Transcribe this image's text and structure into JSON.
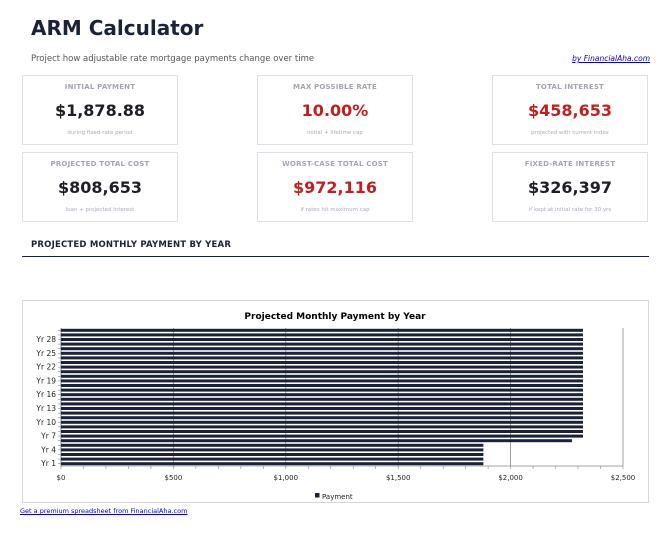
{
  "header": {
    "title": "ARM Calculator",
    "subtitle": "Project how adjustable rate mortgage payments change over time",
    "byline": "by FinancialAha.com"
  },
  "cards": [
    {
      "label": "INITIAL PAYMENT",
      "value": "$1,878.88",
      "note": "during fixed-rate period",
      "color": "#1e1e28"
    },
    {
      "label": "MAX POSSIBLE RATE",
      "value": "10.00%",
      "note": "initial + lifetime cap",
      "color": "#c0201e"
    },
    {
      "label": "TOTAL INTEREST",
      "value": "$458,653",
      "note": "projected with current index",
      "color": "#c0201e"
    },
    {
      "label": "PROJECTED TOTAL COST",
      "value": "$808,653",
      "note": "loan + projected interest",
      "color": "#1e1e28"
    },
    {
      "label": "WORST-CASE TOTAL COST",
      "value": "$972,116",
      "note": "if rates hit maximum cap",
      "color": "#c0201e"
    },
    {
      "label": "FIXED-RATE INTEREST",
      "value": "$326,397",
      "note": "if kept at initial rate for 30 yrs",
      "color": "#1e1e28"
    }
  ],
  "section": {
    "title": "PROJECTED MONTHLY PAYMENT BY YEAR"
  },
  "footer": {
    "link": "Get a premium spreadsheet from FinancialAha.com"
  },
  "chart_data": {
    "type": "bar",
    "orientation": "horizontal",
    "title": "Projected Monthly Payment by Year",
    "categories": [
      "Yr 1",
      "Yr 2",
      "Yr 3",
      "Yr 4",
      "Yr 5",
      "Yr 6",
      "Yr 7",
      "Yr 8",
      "Yr 9",
      "Yr 10",
      "Yr 11",
      "Yr 12",
      "Yr 13",
      "Yr 14",
      "Yr 15",
      "Yr 16",
      "Yr 17",
      "Yr 18",
      "Yr 19",
      "Yr 20",
      "Yr 21",
      "Yr 22",
      "Yr 23",
      "Yr 24",
      "Yr 25",
      "Yr 26",
      "Yr 27",
      "Yr 28",
      "Yr 29",
      "Yr 30"
    ],
    "visible_category_labels": [
      "Yr 1",
      "Yr 4",
      "Yr 7",
      "Yr 10",
      "Yr 13",
      "Yr 16",
      "Yr 19",
      "Yr 22",
      "Yr 25",
      "Yr 28"
    ],
    "series": [
      {
        "name": "Payment",
        "color": "#1a2238",
        "values": [
          1878.88,
          1878.88,
          1878.88,
          1878.88,
          1878.88,
          2273,
          2322,
          2322,
          2322,
          2322,
          2322,
          2322,
          2322,
          2322,
          2322,
          2322,
          2322,
          2322,
          2322,
          2322,
          2322,
          2322,
          2322,
          2322,
          2322,
          2322,
          2322,
          2322,
          2322,
          2322
        ]
      }
    ],
    "xlim": [
      0,
      2500
    ],
    "xticks": [
      0,
      500,
      1000,
      1500,
      2000,
      2500
    ],
    "xtick_labels": [
      "$0",
      "$500",
      "$1,000",
      "$1,500",
      "$2,000",
      "$2,500"
    ],
    "grid": true,
    "legend": "bottom"
  }
}
